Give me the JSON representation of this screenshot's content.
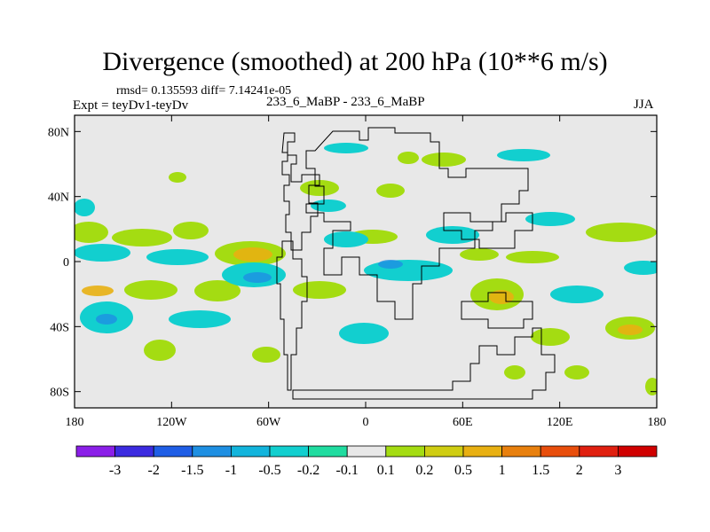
{
  "title": "Divergence (smoothed) at 200 hPa (10**6 m/s)",
  "stats": "rmsd= 0.135593 diff= 7.14241e-05",
  "experiment": "Expt = teyDv1-teyDv",
  "case_label": "233_6_MaBP - 233_6_MaBP",
  "season": "JJA",
  "x_axis": {
    "labels": [
      "180",
      "120W",
      "60W",
      "0",
      "60E",
      "120E",
      "180"
    ],
    "values": [
      -180,
      -120,
      -60,
      0,
      60,
      120,
      180
    ]
  },
  "y_axis": {
    "labels": [
      "80N",
      "40N",
      "0",
      "40S",
      "80S"
    ],
    "values": [
      80,
      40,
      0,
      -40,
      -80
    ]
  },
  "colorbar": {
    "levels": [
      "-3",
      "-2",
      "-1.5",
      "-1",
      "-0.5",
      "-0.2",
      "-0.1",
      "0.1",
      "0.2",
      "0.5",
      "1",
      "1.5",
      "2",
      "3"
    ],
    "colors": [
      "#8b1fe8",
      "#3c2be0",
      "#1f5ee6",
      "#1e8fe2",
      "#12b4dc",
      "#12cfcf",
      "#20dca0",
      "#e8e8e8",
      "#a4dc12",
      "#cfcd12",
      "#e8b012",
      "#e8800e",
      "#e84e0c",
      "#e02010",
      "#d00000"
    ]
  },
  "colors": {
    "background": "#e8e8e8",
    "frame": "#000000"
  }
}
